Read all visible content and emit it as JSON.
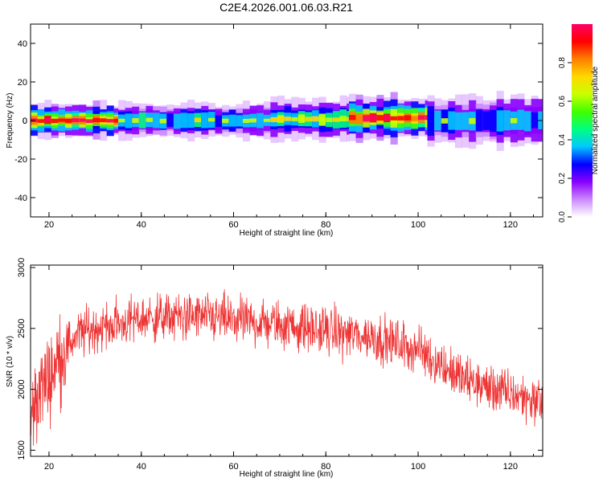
{
  "title": "C2E4.2026.001.06.03.R21",
  "chart_data": [
    {
      "type": "heatmap",
      "xlabel": "Height of straight line (km)",
      "ylabel": "Frequency (Hz)",
      "xlim": [
        16,
        127
      ],
      "ylim": [
        -50,
        50
      ],
      "xticks": [
        "20",
        "40",
        "60",
        "80",
        "100",
        "120"
      ],
      "yticks": [
        "-40",
        "-20",
        "0",
        "20",
        "40"
      ],
      "colorbar": {
        "label": "Normalized spectral amplitude",
        "range": [
          0,
          1
        ],
        "ticks": [
          "0.0",
          "0.2",
          "0.4",
          "0.6",
          "0.8"
        ],
        "colors": [
          "#ffffff",
          "#cc88ff",
          "#8a00ff",
          "#0000ff",
          "#00c8ff",
          "#00ff80",
          "#40ff00",
          "#c8ff00",
          "#ffd800",
          "#ff8000",
          "#ff0000",
          "#ff0066"
        ]
      },
      "band": {
        "center_freq_hz": 0,
        "segments": [
          {
            "x": [
              16,
              35
            ],
            "peak": 0.95,
            "width_hz": 3.5,
            "center_offset_hz": 0
          },
          {
            "x": [
              35,
              68
            ],
            "peak": 0.6,
            "width_hz": 3.5,
            "center_offset_hz": 0
          },
          {
            "x": [
              68,
              85
            ],
            "peak": 0.7,
            "width_hz": 4,
            "center_offset_hz": 0.6
          },
          {
            "x": [
              85,
              102
            ],
            "peak": 0.95,
            "width_hz": 4.5,
            "center_offset_hz": 1.2
          },
          {
            "x": [
              102,
              127
            ],
            "peak": 0.55,
            "width_hz": 5,
            "center_offset_hz": 0
          }
        ]
      }
    },
    {
      "type": "line",
      "xlabel": "Height of straight line (km)",
      "ylabel": "SNR (10 * v/v)",
      "xlim": [
        16,
        127
      ],
      "ylim": [
        1450,
        3020
      ],
      "xticks": [
        "20",
        "40",
        "60",
        "80",
        "100",
        "120"
      ],
      "yticks": [
        "1500",
        "2000",
        "2500",
        "3000"
      ],
      "color": "#ee3333",
      "trend": [
        {
          "x": 16,
          "y": 1750
        },
        {
          "x": 18,
          "y": 2000
        },
        {
          "x": 20,
          "y": 2100
        },
        {
          "x": 22,
          "y": 2250
        },
        {
          "x": 26,
          "y": 2450
        },
        {
          "x": 30,
          "y": 2500
        },
        {
          "x": 40,
          "y": 2580
        },
        {
          "x": 50,
          "y": 2600
        },
        {
          "x": 60,
          "y": 2570
        },
        {
          "x": 70,
          "y": 2530
        },
        {
          "x": 80,
          "y": 2480
        },
        {
          "x": 90,
          "y": 2430
        },
        {
          "x": 100,
          "y": 2330
        },
        {
          "x": 105,
          "y": 2200
        },
        {
          "x": 110,
          "y": 2080
        },
        {
          "x": 120,
          "y": 1960
        },
        {
          "x": 127,
          "y": 1900
        }
      ],
      "noise_amplitude": 160
    }
  ]
}
